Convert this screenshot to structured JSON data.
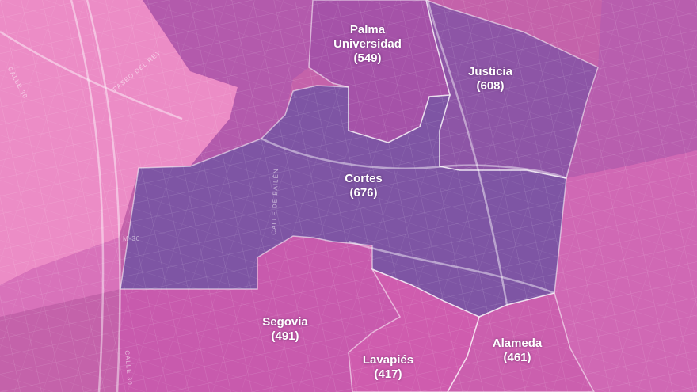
{
  "colors": {
    "background": "#c060a8",
    "river_zone": "#ec8cc6",
    "road_lines": "#ffffff"
  },
  "streets": [
    {
      "id": "calle30-top",
      "text": "CALLE 30"
    },
    {
      "id": "paseo-rey",
      "text": "PASEO DEL REY"
    },
    {
      "id": "calle-bailen",
      "text": "CALLE DE BAILÉN"
    },
    {
      "id": "m30",
      "text": "M-30"
    },
    {
      "id": "calle30-bottom",
      "text": "CALLE 30"
    }
  ],
  "districts": [
    {
      "id": "palma-universidad",
      "name_lines": [
        "Palma",
        "Universidad"
      ],
      "value_label": "(549)",
      "value": 549,
      "fill": "#a552a8"
    },
    {
      "id": "justicia",
      "name_lines": [
        "Justicia"
      ],
      "value_label": "(608)",
      "value": 608,
      "fill": "#8d55a6"
    },
    {
      "id": "cortes",
      "name_lines": [
        "Cortes"
      ],
      "value_label": "(676)",
      "value": 676,
      "fill": "#7e55a4"
    },
    {
      "id": "segovia",
      "name_lines": [
        "Segovia"
      ],
      "value_label": "(491)",
      "value": 491,
      "fill": "#c85aad"
    },
    {
      "id": "lavapies",
      "name_lines": [
        "Lavapiés"
      ],
      "value_label": "(417)",
      "value": 417,
      "fill": "#cf5cae"
    },
    {
      "id": "alameda",
      "name_lines": [
        "Alameda"
      ],
      "value_label": "(461)",
      "value": 461,
      "fill": "#cb5fae"
    }
  ]
}
